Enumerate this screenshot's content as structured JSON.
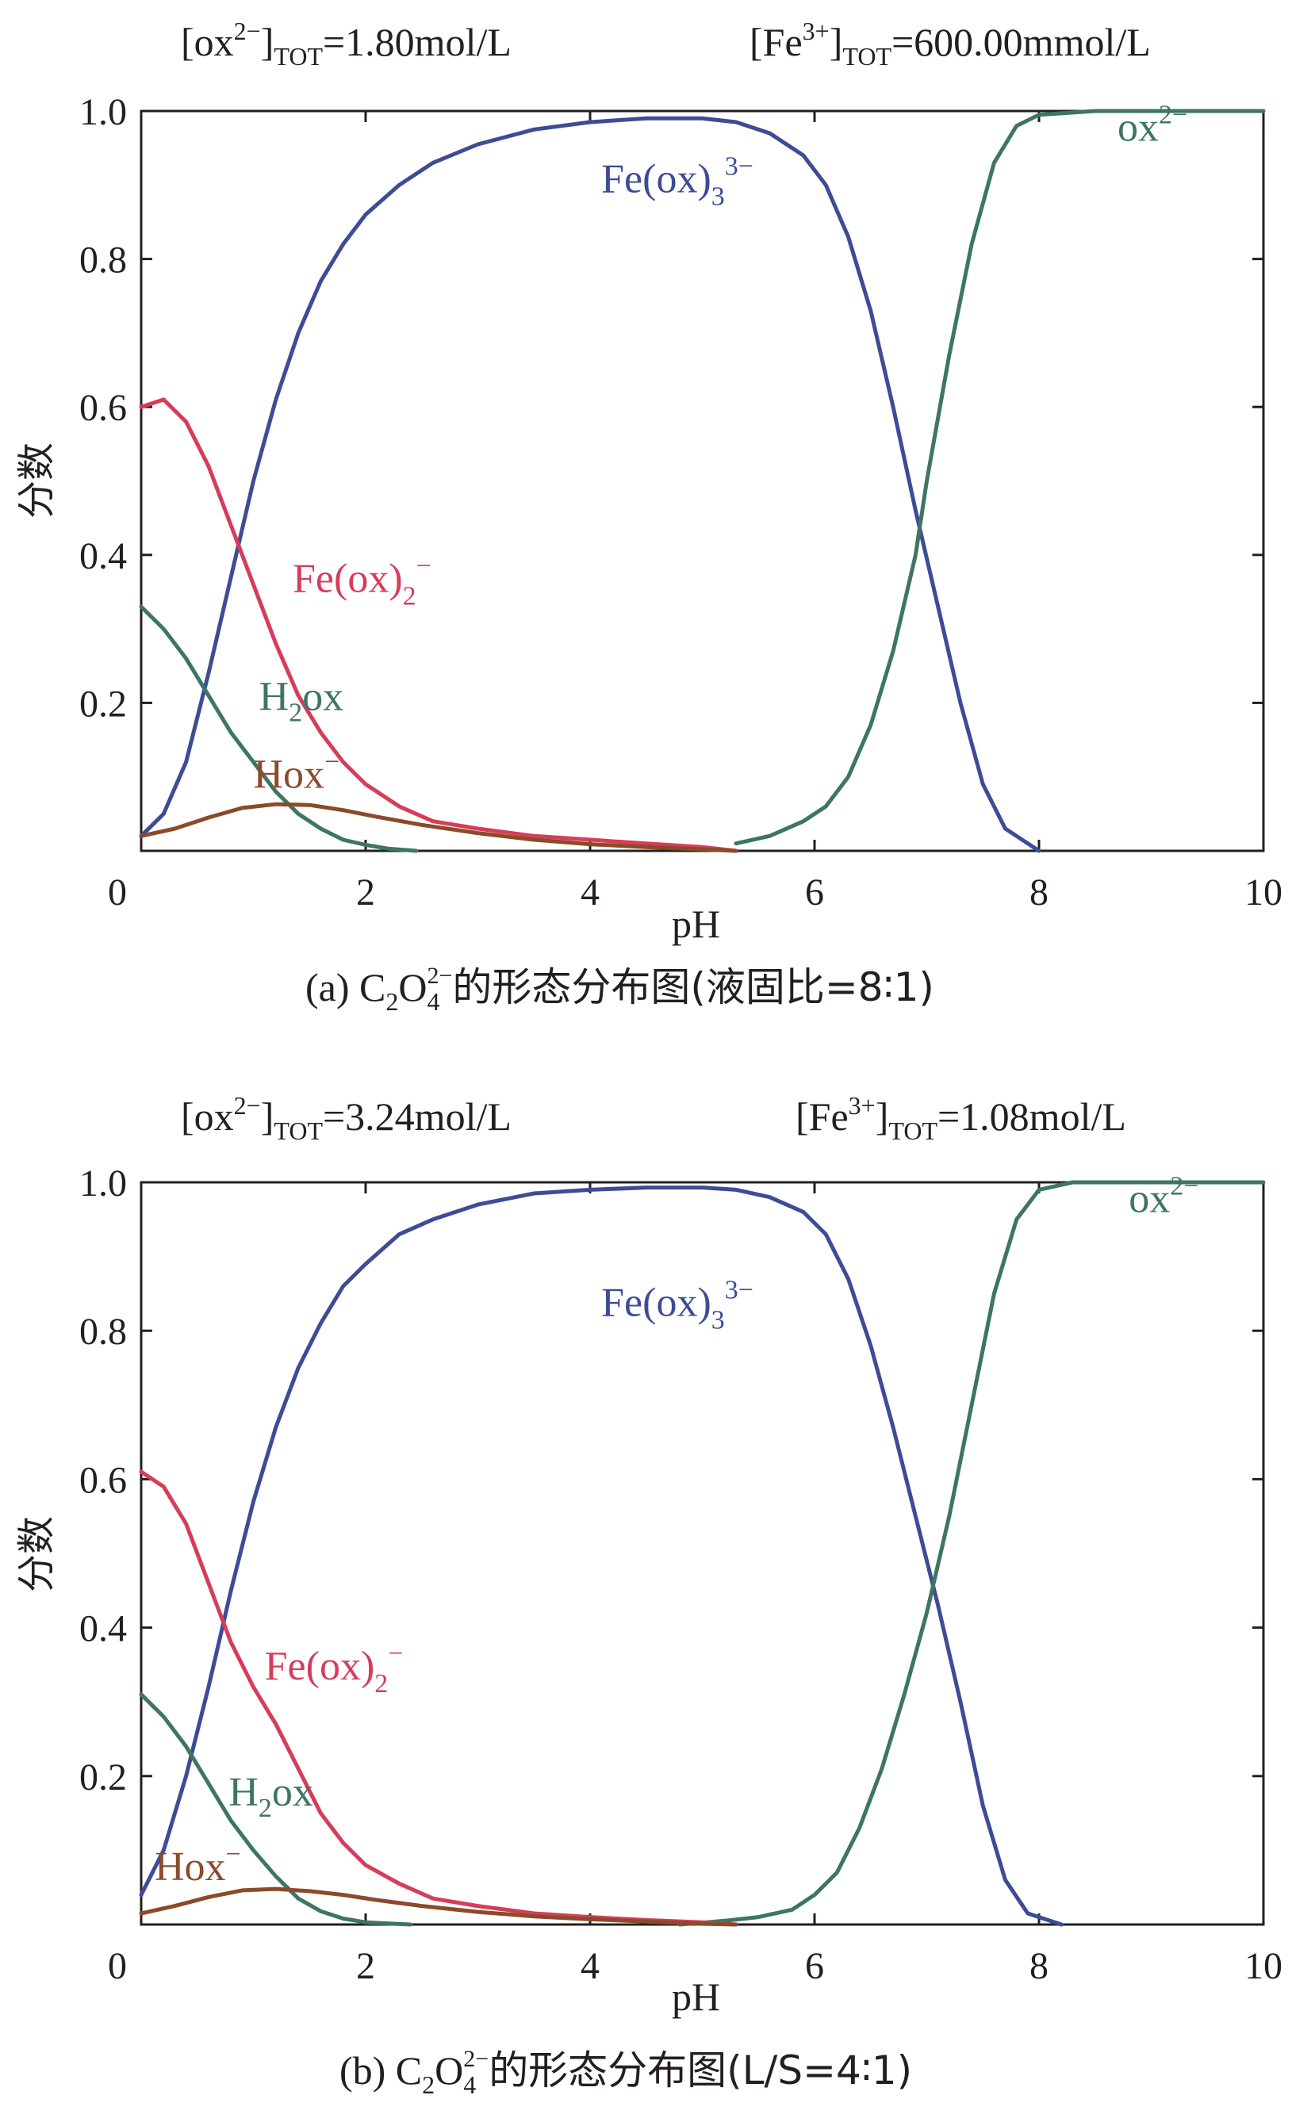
{
  "chart_data": [
    {
      "id": "a",
      "type": "line",
      "header_left": {
        "base": "[ox",
        "sup": "2−",
        "close": "]",
        "sub": "TOT",
        "value": "=1.80mol/L"
      },
      "header_right": {
        "base": "[Fe",
        "sup": "3+",
        "close": "]",
        "sub": "TOT",
        "value": "=600.00mmol/L"
      },
      "xlabel": "pH",
      "ylabel": "分数",
      "xlim": [
        0,
        10
      ],
      "ylim": [
        0,
        1
      ],
      "x_ticks": [
        "0",
        "2",
        "4",
        "6",
        "8",
        "10"
      ],
      "y_ticks": [
        "0.2",
        "0.4",
        "0.6",
        "0.8",
        "1.0"
      ],
      "caption": {
        "prefix": "(a) C",
        "sub1": "2",
        "mid": "O",
        "sub2": "4",
        "sup2": "2−",
        "suffix": "的形态分布图(液固比=8∶1)"
      },
      "series": [
        {
          "name": "Fe(ox)3 3−",
          "color": "#3d4c95",
          "label": {
            "base": "Fe(ox)",
            "sub": "3",
            "sup": "3−",
            "at": [
              4.1,
              0.89
            ]
          },
          "points": [
            [
              0,
              0.02
            ],
            [
              0.2,
              0.05
            ],
            [
              0.4,
              0.12
            ],
            [
              0.6,
              0.24
            ],
            [
              0.8,
              0.37
            ],
            [
              1.0,
              0.5
            ],
            [
              1.2,
              0.61
            ],
            [
              1.4,
              0.7
            ],
            [
              1.6,
              0.77
            ],
            [
              1.8,
              0.82
            ],
            [
              2.0,
              0.86
            ],
            [
              2.3,
              0.9
            ],
            [
              2.6,
              0.93
            ],
            [
              3.0,
              0.955
            ],
            [
              3.5,
              0.975
            ],
            [
              4.0,
              0.985
            ],
            [
              4.5,
              0.99
            ],
            [
              5.0,
              0.99
            ],
            [
              5.3,
              0.985
            ],
            [
              5.6,
              0.97
            ],
            [
              5.9,
              0.94
            ],
            [
              6.1,
              0.9
            ],
            [
              6.3,
              0.83
            ],
            [
              6.5,
              0.73
            ],
            [
              6.7,
              0.6
            ],
            [
              6.9,
              0.46
            ],
            [
              7.1,
              0.33
            ],
            [
              7.3,
              0.2
            ],
            [
              7.5,
              0.09
            ],
            [
              7.7,
              0.03
            ],
            [
              7.9,
              0.01
            ],
            [
              8.0,
              0.0
            ]
          ]
        },
        {
          "name": "ox 2−",
          "color": "#3e7565",
          "label": {
            "base": "ox",
            "sub": "",
            "sup": "2−",
            "at": [
              8.7,
              0.96
            ]
          },
          "points": [
            [
              5.3,
              0.01
            ],
            [
              5.6,
              0.02
            ],
            [
              5.9,
              0.04
            ],
            [
              6.1,
              0.06
            ],
            [
              6.3,
              0.1
            ],
            [
              6.5,
              0.17
            ],
            [
              6.7,
              0.27
            ],
            [
              6.9,
              0.4
            ],
            [
              7.0,
              0.5
            ],
            [
              7.2,
              0.67
            ],
            [
              7.4,
              0.82
            ],
            [
              7.6,
              0.93
            ],
            [
              7.8,
              0.98
            ],
            [
              8.0,
              0.995
            ],
            [
              8.5,
              1.0
            ],
            [
              10,
              1.0
            ]
          ]
        },
        {
          "name": "Fe(ox)2 −",
          "color": "#d63d5a",
          "label": {
            "base": "Fe(ox)",
            "sub": "2",
            "sup": "−",
            "at": [
              1.35,
              0.35
            ]
          },
          "points": [
            [
              0,
              0.6
            ],
            [
              0.2,
              0.61
            ],
            [
              0.4,
              0.58
            ],
            [
              0.6,
              0.52
            ],
            [
              0.8,
              0.44
            ],
            [
              1.0,
              0.36
            ],
            [
              1.2,
              0.28
            ],
            [
              1.4,
              0.21
            ],
            [
              1.6,
              0.16
            ],
            [
              1.8,
              0.12
            ],
            [
              2.0,
              0.09
            ],
            [
              2.3,
              0.06
            ],
            [
              2.6,
              0.04
            ],
            [
              3.0,
              0.03
            ],
            [
              3.5,
              0.02
            ],
            [
              4.0,
              0.015
            ],
            [
              4.5,
              0.01
            ],
            [
              5.0,
              0.005
            ],
            [
              5.3,
              0.0
            ]
          ]
        },
        {
          "name": "H2ox",
          "color": "#3e7565",
          "label": {
            "base": "H",
            "sub": "2",
            "sup": "",
            "base2": "ox",
            "at": [
              1.05,
              0.19
            ]
          },
          "points": [
            [
              0,
              0.33
            ],
            [
              0.2,
              0.3
            ],
            [
              0.4,
              0.26
            ],
            [
              0.6,
              0.21
            ],
            [
              0.8,
              0.16
            ],
            [
              1.0,
              0.12
            ],
            [
              1.2,
              0.08
            ],
            [
              1.4,
              0.05
            ],
            [
              1.6,
              0.03
            ],
            [
              1.8,
              0.015
            ],
            [
              2.0,
              0.008
            ],
            [
              2.2,
              0.003
            ],
            [
              2.45,
              0.0
            ]
          ]
        },
        {
          "name": "Hox −",
          "color": "#8b4a2a",
          "label": {
            "base": "Hox",
            "sub": "",
            "sup": "−",
            "at": [
              1.0,
              0.085
            ]
          },
          "points": [
            [
              0,
              0.02
            ],
            [
              0.3,
              0.03
            ],
            [
              0.6,
              0.045
            ],
            [
              0.9,
              0.058
            ],
            [
              1.2,
              0.063
            ],
            [
              1.5,
              0.062
            ],
            [
              1.8,
              0.055
            ],
            [
              2.1,
              0.046
            ],
            [
              2.5,
              0.035
            ],
            [
              3.0,
              0.024
            ],
            [
              3.5,
              0.015
            ],
            [
              4.0,
              0.009
            ],
            [
              4.5,
              0.005
            ],
            [
              5.0,
              0.002
            ],
            [
              5.3,
              0.0
            ]
          ]
        }
      ]
    },
    {
      "id": "b",
      "type": "line",
      "header_left": {
        "base": "[ox",
        "sup": "2−",
        "close": "]",
        "sub": "TOT",
        "value": "=3.24mol/L"
      },
      "header_right": {
        "base": "[Fe",
        "sup": "3+",
        "close": "]",
        "sub": "TOT",
        "value": "=1.08mol/L"
      },
      "xlabel": "pH",
      "ylabel": "分数",
      "xlim": [
        0,
        10
      ],
      "ylim": [
        0,
        1
      ],
      "x_ticks": [
        "0",
        "2",
        "4",
        "6",
        "8",
        "10"
      ],
      "y_ticks": [
        "0.2",
        "0.4",
        "0.6",
        "0.8",
        "1.0"
      ],
      "caption": {
        "prefix": "(b) C",
        "sub1": "2",
        "mid": "O",
        "sub2": "4",
        "sup2": "2−",
        "suffix": "的形态分布图(L/S=4∶1)"
      },
      "series": [
        {
          "name": "Fe(ox)3 3−",
          "color": "#3d4c95",
          "label": {
            "base": "Fe(ox)",
            "sub": "3",
            "sup": "3−",
            "at": [
              4.1,
              0.82
            ]
          },
          "points": [
            [
              0,
              0.04
            ],
            [
              0.2,
              0.1
            ],
            [
              0.4,
              0.2
            ],
            [
              0.6,
              0.32
            ],
            [
              0.8,
              0.45
            ],
            [
              1.0,
              0.57
            ],
            [
              1.2,
              0.67
            ],
            [
              1.4,
              0.75
            ],
            [
              1.6,
              0.81
            ],
            [
              1.8,
              0.86
            ],
            [
              2.0,
              0.89
            ],
            [
              2.3,
              0.93
            ],
            [
              2.6,
              0.95
            ],
            [
              3.0,
              0.97
            ],
            [
              3.5,
              0.985
            ],
            [
              4.0,
              0.99
            ],
            [
              4.5,
              0.993
            ],
            [
              5.0,
              0.993
            ],
            [
              5.3,
              0.99
            ],
            [
              5.6,
              0.98
            ],
            [
              5.9,
              0.96
            ],
            [
              6.1,
              0.93
            ],
            [
              6.3,
              0.87
            ],
            [
              6.5,
              0.78
            ],
            [
              6.7,
              0.67
            ],
            [
              6.9,
              0.55
            ],
            [
              7.1,
              0.43
            ],
            [
              7.3,
              0.3
            ],
            [
              7.5,
              0.16
            ],
            [
              7.7,
              0.06
            ],
            [
              7.9,
              0.015
            ],
            [
              8.2,
              0.0
            ]
          ]
        },
        {
          "name": "ox 2−",
          "color": "#3e7565",
          "label": {
            "base": "ox",
            "sub": "",
            "sup": "2−",
            "at": [
              8.8,
              0.96
            ]
          },
          "points": [
            [
              4.8,
              0.0
            ],
            [
              5.2,
              0.005
            ],
            [
              5.5,
              0.01
            ],
            [
              5.8,
              0.02
            ],
            [
              6.0,
              0.04
            ],
            [
              6.2,
              0.07
            ],
            [
              6.4,
              0.13
            ],
            [
              6.6,
              0.21
            ],
            [
              6.8,
              0.31
            ],
            [
              7.0,
              0.42
            ],
            [
              7.2,
              0.55
            ],
            [
              7.4,
              0.7
            ],
            [
              7.6,
              0.85
            ],
            [
              7.8,
              0.95
            ],
            [
              8.0,
              0.99
            ],
            [
              8.3,
              1.0
            ],
            [
              10,
              1.0
            ]
          ]
        },
        {
          "name": "Fe(ox)2 −",
          "color": "#d63d5a",
          "label": {
            "base": "Fe(ox)",
            "sub": "2",
            "sup": "−",
            "at": [
              1.1,
              0.33
            ]
          },
          "points": [
            [
              0,
              0.61
            ],
            [
              0.2,
              0.59
            ],
            [
              0.4,
              0.54
            ],
            [
              0.6,
              0.46
            ],
            [
              0.8,
              0.38
            ],
            [
              1.0,
              0.32
            ],
            [
              1.2,
              0.27
            ],
            [
              1.4,
              0.21
            ],
            [
              1.6,
              0.15
            ],
            [
              1.8,
              0.11
            ],
            [
              2.0,
              0.08
            ],
            [
              2.3,
              0.055
            ],
            [
              2.6,
              0.035
            ],
            [
              3.0,
              0.025
            ],
            [
              3.5,
              0.015
            ],
            [
              4.0,
              0.01
            ],
            [
              4.5,
              0.006
            ],
            [
              5.0,
              0.003
            ],
            [
              5.3,
              0.0
            ]
          ]
        },
        {
          "name": "H2ox",
          "color": "#3e7565",
          "label": {
            "base": "H",
            "sub": "2",
            "sup": "",
            "base2": "ox",
            "at": [
              0.78,
              0.16
            ]
          },
          "points": [
            [
              0,
              0.31
            ],
            [
              0.2,
              0.28
            ],
            [
              0.4,
              0.24
            ],
            [
              0.6,
              0.19
            ],
            [
              0.8,
              0.14
            ],
            [
              1.0,
              0.1
            ],
            [
              1.2,
              0.065
            ],
            [
              1.4,
              0.035
            ],
            [
              1.6,
              0.018
            ],
            [
              1.8,
              0.008
            ],
            [
              2.0,
              0.003
            ],
            [
              2.4,
              0.0
            ]
          ]
        },
        {
          "name": "Hox −",
          "color": "#8b4a2a",
          "label": {
            "base": "Hox",
            "sub": "",
            "sup": "−",
            "at": [
              0.12,
              0.06
            ]
          },
          "points": [
            [
              0,
              0.015
            ],
            [
              0.3,
              0.025
            ],
            [
              0.6,
              0.037
            ],
            [
              0.9,
              0.046
            ],
            [
              1.2,
              0.048
            ],
            [
              1.5,
              0.045
            ],
            [
              1.8,
              0.04
            ],
            [
              2.1,
              0.033
            ],
            [
              2.5,
              0.025
            ],
            [
              3.0,
              0.017
            ],
            [
              3.5,
              0.011
            ],
            [
              4.0,
              0.007
            ],
            [
              4.5,
              0.004
            ],
            [
              5.0,
              0.001
            ],
            [
              5.3,
              0.0
            ]
          ]
        }
      ]
    }
  ]
}
